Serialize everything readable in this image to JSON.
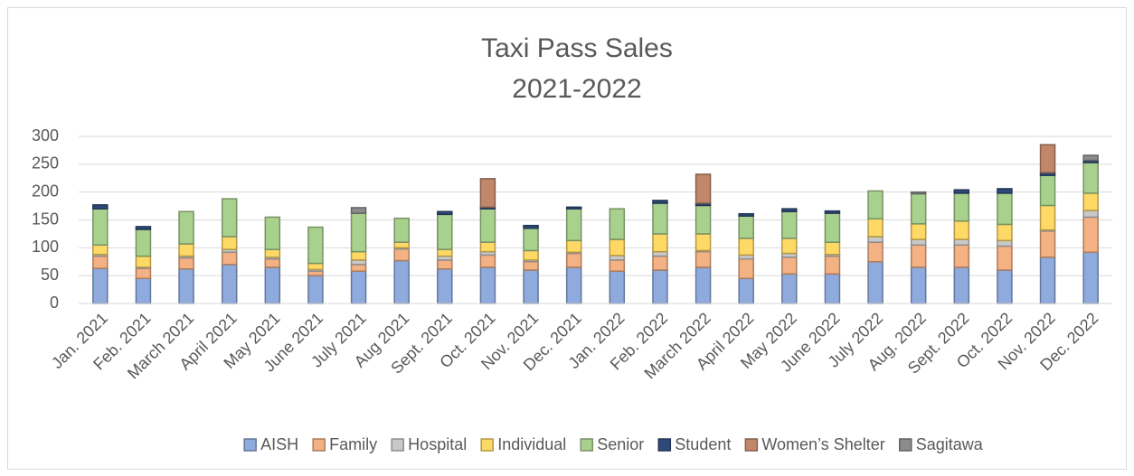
{
  "chart_data": {
    "type": "stacked_bar",
    "title": "Taxi Pass Sales",
    "subtitle": "2021-2022",
    "categories": [
      "Jan. 2021",
      "Feb. 2021",
      "March 2021",
      "April 2021",
      "May 2021",
      "June 2021",
      "July 2021",
      "Aug 2021",
      "Sept. 2021",
      "Oct. 2021",
      "Nov. 2021",
      "Dec. 2021",
      "Jan. 2022",
      "Feb. 2022",
      "March 2022",
      "April 2022",
      "May 2022",
      "June 2022",
      "July 2022",
      "Aug. 2022",
      "Sept. 2022",
      "Oct. 2022",
      "Nov. 2022",
      "Dec. 2022"
    ],
    "series": [
      {
        "name": "AISH",
        "color": "#8faadc",
        "values": [
          63,
          45,
          62,
          70,
          65,
          50,
          58,
          77,
          62,
          65,
          60,
          65,
          58,
          60,
          65,
          45,
          53,
          53,
          75,
          65,
          65,
          60,
          83,
          92
        ]
      },
      {
        "name": "Family",
        "color": "#f4b183",
        "values": [
          22,
          18,
          20,
          22,
          15,
          8,
          12,
          21,
          16,
          22,
          15,
          25,
          20,
          25,
          28,
          35,
          30,
          32,
          35,
          40,
          40,
          43,
          47,
          63
        ]
      },
      {
        "name": "Hospital",
        "color": "#c9c9c9",
        "values": [
          3,
          2,
          3,
          5,
          3,
          3,
          8,
          2,
          7,
          6,
          3,
          2,
          8,
          8,
          2,
          7,
          7,
          3,
          10,
          10,
          10,
          10,
          2,
          12
        ]
      },
      {
        "name": "Individual",
        "color": "#ffd966",
        "values": [
          17,
          20,
          22,
          23,
          14,
          11,
          15,
          10,
          12,
          17,
          17,
          21,
          29,
          32,
          30,
          30,
          27,
          22,
          32,
          28,
          33,
          29,
          44,
          31
        ]
      },
      {
        "name": "Senior",
        "color": "#a9d18e",
        "values": [
          65,
          48,
          58,
          68,
          58,
          65,
          69,
          43,
          63,
          60,
          40,
          57,
          55,
          55,
          51,
          40,
          48,
          52,
          50,
          54,
          50,
          56,
          54,
          55
        ]
      },
      {
        "name": "Student",
        "color": "#2f4a7a",
        "values": [
          7,
          5,
          0,
          0,
          0,
          0,
          0,
          0,
          5,
          3,
          5,
          3,
          0,
          5,
          4,
          4,
          5,
          4,
          0,
          0,
          6,
          8,
          5,
          4
        ]
      },
      {
        "name": "Women’s Shelter",
        "color": "#c0876b",
        "values": [
          0,
          0,
          0,
          0,
          0,
          0,
          0,
          0,
          0,
          51,
          0,
          0,
          0,
          0,
          52,
          0,
          0,
          0,
          0,
          0,
          0,
          0,
          50,
          0
        ]
      },
      {
        "name": "Sagitawa",
        "color": "#8c8c8c",
        "values": [
          0,
          0,
          0,
          0,
          0,
          0,
          10,
          0,
          0,
          0,
          0,
          0,
          0,
          0,
          0,
          0,
          0,
          0,
          0,
          3,
          0,
          0,
          0,
          9
        ]
      }
    ],
    "ylim": [
      0,
      300
    ],
    "yticks": [
      0,
      50,
      100,
      150,
      200,
      250,
      300
    ],
    "grid": true,
    "legend": "bottom"
  }
}
